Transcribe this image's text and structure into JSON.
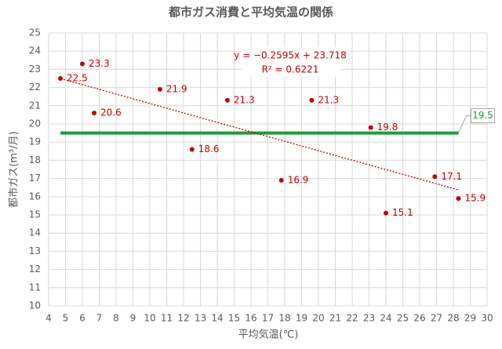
{
  "chart_data": {
    "type": "scatter",
    "title": "都市ガス消費と平均気温の関係",
    "x_label": "平均気温(℃)",
    "y_label": "都市ガス(m³/月)",
    "x": [
      4.7,
      6.0,
      6.7,
      10.6,
      12.5,
      14.6,
      17.8,
      19.6,
      23.1,
      24.0,
      26.9,
      28.3
    ],
    "series": [
      {
        "color": "#c00000",
        "values": [
          22.5,
          23.3,
          20.6,
          21.9,
          18.6,
          21.3,
          16.9,
          21.3,
          19.8,
          15.1,
          17.1,
          15.9
        ]
      }
    ],
    "xlim": [
      4,
      30
    ],
    "xticks": [
      4,
      5,
      6,
      7,
      8,
      9,
      10,
      11,
      12,
      13,
      14,
      15,
      16,
      17,
      18,
      19,
      20,
      21,
      22,
      23,
      24,
      25,
      26,
      27,
      28,
      29,
      30
    ],
    "ylim": [
      10,
      25
    ],
    "yticks": [
      10,
      11,
      12,
      13,
      14,
      15,
      16,
      17,
      18,
      19,
      20,
      21,
      22,
      23,
      24,
      25
    ],
    "grid": true,
    "trendline": {
      "slope": -0.2595,
      "intercept": 23.718,
      "color": "#c00000",
      "equation": "y = −0.2595x + 23.718",
      "r_squared": "R² = 0.6221"
    },
    "reference_line": {
      "value": 19.5,
      "color": "#1e9b3c"
    }
  }
}
